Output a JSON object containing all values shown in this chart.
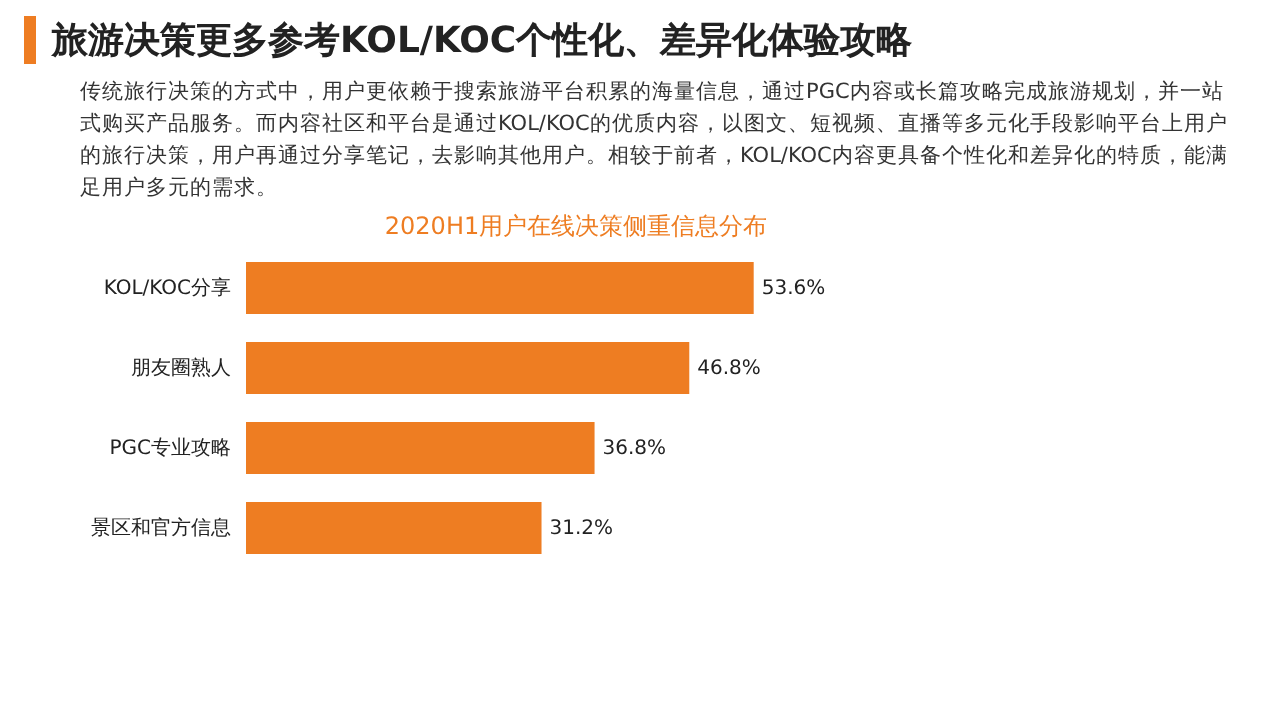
{
  "chart_data": {
    "type": "bar",
    "orientation": "horizontal",
    "title": "2020H1用户在线决策侧重信息分布",
    "annotations": [
      "旅游决策更多参考KOL/KOC个性化、差异化体验攻略",
      "传统旅行决策的方式中，用户更依赖于搜索旅游平台积累的海量信息，通过PGC内容或长篇攻略完成旅游规划，并一站式购买产品服务。而内容社区和平台是通过KOL/KOC的优质内容，以图文、短视频、直播等多元化手段影响平台上用户的旅行决策，用户再通过分享笔记，去影响其他用户。相较于前者，KOL/KOC内容更具备个性化和差异化的特质，能满足用户多元的需求。"
    ],
    "categories": [
      "KOL/KOC分享",
      "朋友圈熟人",
      "PGC专业攻略",
      "景区和官方信息"
    ],
    "values": [
      53.6,
      46.8,
      36.8,
      31.2
    ],
    "value_labels": [
      "53.6%",
      "46.8%",
      "36.8%",
      "31.2%"
    ],
    "color": "#ee7d22",
    "tick_labels": "y"
  }
}
